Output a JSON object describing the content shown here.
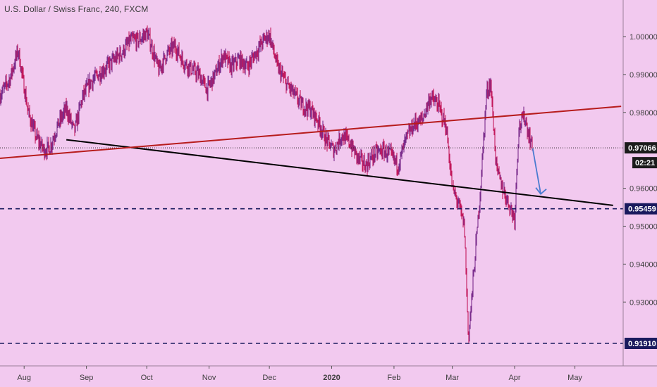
{
  "header": {
    "title": "U.S. Dollar / Swiss Franc, 240, FXCM"
  },
  "colors": {
    "background": "#f2c9ef",
    "candles": "#7b2c8c",
    "candles_alt": "#c2185b",
    "support_line": "#000000",
    "rising_line": "#b71c1c",
    "dashed_levels": "#1a1a5e",
    "projection_arrow": "#4a7bd0",
    "axis_text": "#3e3e3e"
  },
  "chart_data": {
    "type": "line",
    "title": "U.S. Dollar / Swiss Franc, 240, FXCM",
    "xlabel": "",
    "ylabel": "",
    "y_axis_side": "right",
    "ylim": [
      0.9125,
      1.0065
    ],
    "y_ticks": [
      "1.00000",
      "0.99000",
      "0.98000",
      "0.96000",
      "0.95000",
      "0.94000",
      "0.93000"
    ],
    "x_ticks": [
      "Aug",
      "Sep",
      "Oct",
      "Nov",
      "Dec",
      "2020",
      "Feb",
      "Mar",
      "Apr",
      "May"
    ],
    "x_tick_dates": [
      "2019-08-01",
      "2019-09-01",
      "2019-10-01",
      "2019-11-01",
      "2019-12-01",
      "2020-01-01",
      "2020-02-01",
      "2020-03-01",
      "2020-04-01",
      "2020-05-01"
    ],
    "xlim": [
      "2019-07-20",
      "2020-05-25"
    ],
    "grid": false,
    "series": [
      {
        "kind": "price",
        "x": [
          "2019-07-20",
          "2019-07-25",
          "2019-07-29",
          "2019-08-03",
          "2019-08-07",
          "2019-08-11",
          "2019-08-14",
          "2019-08-18",
          "2019-08-22",
          "2019-08-26",
          "2019-08-30",
          "2019-09-03",
          "2019-09-07",
          "2019-09-11",
          "2019-09-15",
          "2019-09-19",
          "2019-09-23",
          "2019-09-27",
          "2019-10-01",
          "2019-10-03",
          "2019-10-07",
          "2019-10-11",
          "2019-10-15",
          "2019-10-19",
          "2019-10-23",
          "2019-10-27",
          "2019-10-31",
          "2019-11-04",
          "2019-11-08",
          "2019-11-12",
          "2019-11-16",
          "2019-11-20",
          "2019-11-24",
          "2019-11-28",
          "2019-12-01",
          "2019-12-05",
          "2019-12-09",
          "2019-12-13",
          "2019-12-17",
          "2019-12-21",
          "2019-12-25",
          "2019-12-29",
          "2020-01-02",
          "2020-01-06",
          "2020-01-10",
          "2020-01-14",
          "2020-01-18",
          "2020-01-22",
          "2020-01-26",
          "2020-01-30",
          "2020-02-03",
          "2020-02-07",
          "2020-02-11",
          "2020-02-15",
          "2020-02-19",
          "2020-02-23",
          "2020-02-27",
          "2020-03-01",
          "2020-03-04",
          "2020-03-07",
          "2020-03-09",
          "2020-03-12",
          "2020-03-15",
          "2020-03-18",
          "2020-03-20",
          "2020-03-23",
          "2020-03-26",
          "2020-03-29",
          "2020-04-01",
          "2020-04-03",
          "2020-04-06",
          "2020-04-08",
          "2020-04-10"
        ],
        "values": [
          0.9845,
          0.989,
          0.9965,
          0.98,
          0.9735,
          0.97,
          0.971,
          0.977,
          0.981,
          0.975,
          0.984,
          0.988,
          0.99,
          0.992,
          0.994,
          0.996,
          0.999,
          0.999,
          1.001,
          0.998,
          0.991,
          0.9955,
          0.9975,
          0.9935,
          0.9915,
          0.99,
          0.986,
          0.99,
          0.995,
          0.992,
          0.994,
          0.992,
          0.9955,
          0.999,
          1.0005,
          0.992,
          0.988,
          0.985,
          0.982,
          0.981,
          0.978,
          0.973,
          0.97,
          0.974,
          0.972,
          0.968,
          0.966,
          0.969,
          0.97,
          0.969,
          0.966,
          0.973,
          0.977,
          0.978,
          0.984,
          0.982,
          0.976,
          0.96,
          0.956,
          0.95,
          0.92,
          0.94,
          0.96,
          0.985,
          0.988,
          0.965,
          0.96,
          0.956,
          0.952,
          0.976,
          0.979,
          0.974,
          0.971
        ]
      }
    ],
    "trendlines": [
      {
        "name": "",
        "kind": "descending_support",
        "x1": "2019-08-22",
        "y1": 0.9728,
        "x2": "2020-05-20",
        "y2": 0.9555
      },
      {
        "name": "",
        "kind": "rising_line",
        "x1": "2019-07-20",
        "y1": 0.9679,
        "x2": "2020-05-24",
        "y2": 0.9816
      }
    ],
    "horizontal_levels": [
      {
        "value": 0.95459,
        "label": "0.95459",
        "style": "dashed"
      },
      {
        "value": 0.9191,
        "label": "0.91910",
        "style": "dashed"
      },
      {
        "value": 0.97066,
        "label": "0.97066",
        "style": "dotted",
        "current_price": true
      }
    ],
    "countdown": {
      "text": "02:21"
    },
    "projection_arrow": {
      "x1": "2020-04-10",
      "y1": 0.9705,
      "x2": "2020-04-14",
      "y2": 0.9585
    }
  }
}
